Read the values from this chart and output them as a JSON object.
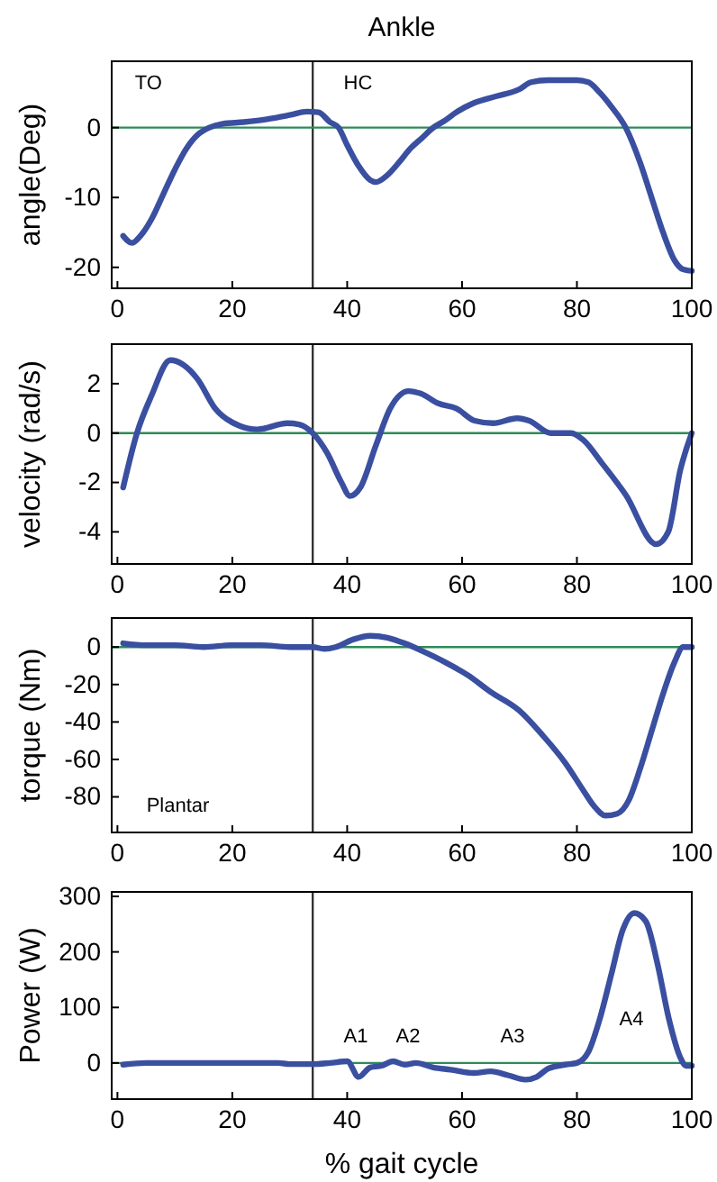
{
  "chart_data": [
    {
      "type": "line",
      "title": "Ankle",
      "ylabel": "angle(Deg)",
      "xlim": [
        -1,
        100
      ],
      "xticks": [
        0,
        20,
        40,
        60,
        80,
        100
      ],
      "ylim": [
        -23,
        9.5
      ],
      "yticks": [
        -20,
        -10,
        0
      ],
      "x": [
        1,
        2.5,
        4,
        6,
        8,
        10,
        12,
        14,
        16,
        18,
        22,
        26,
        30,
        33,
        35,
        37,
        38.5,
        40,
        42,
        44,
        45,
        47,
        49,
        51,
        53,
        55,
        57,
        59,
        62,
        66,
        70,
        72,
        75,
        80,
        82,
        84,
        86,
        88.5,
        91,
        93,
        95,
        97,
        98.5,
        100
      ],
      "series": [
        {
          "color": "#3a4fa0",
          "values": [
            -15.5,
            -16.5,
            -15.5,
            -13,
            -9.5,
            -6,
            -3,
            -1,
            0,
            0.5,
            0.8,
            1.2,
            1.8,
            2.3,
            2.2,
            0.8,
            0,
            -2.5,
            -5.5,
            -7.5,
            -7.8,
            -6.8,
            -5,
            -3,
            -1.5,
            0,
            1,
            2.2,
            3.5,
            4.5,
            5.5,
            6.5,
            6.8,
            6.8,
            6.5,
            5,
            3,
            0,
            -5,
            -10,
            -15,
            -19,
            -20.3,
            -20.5
          ]
        }
      ],
      "ref_lines": [
        {
          "axis": "x",
          "value": 34,
          "color": "#333333"
        },
        {
          "axis": "y",
          "value": 0,
          "color": "#2e8b57"
        }
      ],
      "annotations": [
        "TO",
        "HC"
      ]
    },
    {
      "type": "line",
      "ylabel": "velocity (rad/s)",
      "xlim": [
        -1,
        100
      ],
      "xticks": [
        0,
        20,
        40,
        60,
        80,
        100
      ],
      "ylim": [
        -5.3,
        3.6
      ],
      "yticks": [
        -4,
        -2,
        0,
        2
      ],
      "x": [
        1,
        3.4,
        5.9,
        9.2,
        13.9,
        17,
        21.2,
        24.4,
        29.6,
        31.6,
        34,
        36.5,
        39,
        40.5,
        42.3,
        45,
        47.5,
        50.7,
        52.8,
        55.9,
        59,
        62.2,
        65.4,
        69.6,
        71.7,
        75.4,
        79,
        81.2,
        84.3,
        88.5,
        93.8,
        95.9,
        98,
        100
      ],
      "series": [
        {
          "color": "#3a4fa0",
          "values": [
            -2.2,
            0,
            1.5,
            2.95,
            2.2,
            1.0,
            0.3,
            0.15,
            0.4,
            0.35,
            0,
            -0.8,
            -2.0,
            -2.55,
            -2.2,
            -0.5,
            1.0,
            1.7,
            1.6,
            1.2,
            1.0,
            0.5,
            0.4,
            0.6,
            0.5,
            0,
            0,
            -0.3,
            -1.2,
            -2.5,
            -4.5,
            -4.0,
            -1.5,
            0
          ]
        }
      ],
      "ref_lines": [
        {
          "axis": "x",
          "value": 34,
          "color": "#333333"
        },
        {
          "axis": "y",
          "value": 0,
          "color": "#2e8b57"
        }
      ]
    },
    {
      "type": "line",
      "ylabel": "torque (Nm)",
      "xlim": [
        -1,
        100
      ],
      "xticks": [
        0,
        20,
        40,
        60,
        80,
        100
      ],
      "ylim": [
        -99,
        15.5
      ],
      "yticks": [
        -80,
        -60,
        -40,
        -20,
        0
      ],
      "x": [
        1,
        5,
        10,
        15,
        20,
        25,
        30,
        34,
        36,
        38,
        41,
        44,
        47,
        50,
        53,
        57,
        61,
        65,
        70,
        74,
        78,
        81,
        83,
        85,
        87,
        89,
        91,
        93,
        95,
        97,
        98.5,
        100
      ],
      "series": [
        {
          "color": "#3a4fa0",
          "values": [
            2,
            1,
            1,
            0,
            1,
            1,
            0,
            0,
            -1,
            0,
            4,
            6,
            5,
            2,
            -2,
            -8,
            -15,
            -24,
            -34,
            -47,
            -62,
            -76,
            -85,
            -90,
            -89,
            -82,
            -65,
            -45,
            -25,
            -8,
            0,
            0
          ]
        }
      ],
      "ref_lines": [
        {
          "axis": "x",
          "value": 34,
          "color": "#333333"
        },
        {
          "axis": "y",
          "value": 0,
          "color": "#2e8b57"
        }
      ],
      "annotations": [
        "Plantar"
      ]
    },
    {
      "type": "line",
      "ylabel": "Power (W)",
      "xlabel": "% gait cycle",
      "xlim": [
        -1,
        100
      ],
      "xticks": [
        0,
        20,
        40,
        60,
        80,
        100
      ],
      "ylim": [
        -65,
        308
      ],
      "yticks": [
        0,
        100,
        200,
        300
      ],
      "x": [
        1,
        5,
        10,
        20,
        28,
        30,
        34,
        37,
        40,
        42,
        44,
        46,
        48,
        50,
        52,
        55,
        58,
        62,
        65,
        68,
        71,
        73,
        75,
        78,
        80,
        82,
        84,
        86,
        88,
        90,
        92,
        94,
        96,
        98,
        99,
        100
      ],
      "series": [
        {
          "color": "#3a4fa0",
          "values": [
            -3,
            0,
            0,
            0,
            0,
            -2,
            -2,
            0,
            3,
            -25,
            -8,
            -5,
            3,
            -3,
            0,
            -8,
            -12,
            -18,
            -15,
            -22,
            -30,
            -25,
            -10,
            -3,
            0,
            20,
            80,
            160,
            240,
            270,
            255,
            180,
            80,
            10,
            -5,
            -5
          ]
        }
      ],
      "ref_lines": [
        {
          "axis": "x",
          "value": 34,
          "color": "#333333"
        },
        {
          "axis": "y",
          "value": 0,
          "color": "#2e8b57"
        }
      ],
      "annotations": [
        "A1",
        "A2",
        "A3",
        "A4"
      ]
    }
  ]
}
